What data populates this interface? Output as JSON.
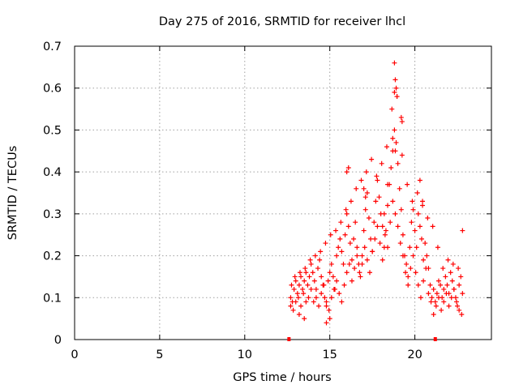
{
  "chart_data": {
    "type": "scatter",
    "title": "Day 275 of 2016, SRMTID for receiver lhcl",
    "xlabel": "GPS time / hours",
    "ylabel": "SRMTID / TECUs",
    "xlim": [
      0,
      24.5
    ],
    "ylim": [
      0,
      0.7
    ],
    "xticks": [
      0,
      5,
      10,
      15,
      20
    ],
    "yticks": [
      0,
      0.1,
      0.2,
      0.3,
      0.4,
      0.5,
      0.6,
      0.7
    ],
    "x_tick_labels": [
      "0",
      "5",
      "10",
      "15",
      "20"
    ],
    "y_tick_labels": [
      "0",
      "0.1",
      "0.2",
      "0.3",
      "0.4",
      "0.5",
      "0.6",
      "0.7"
    ],
    "grid": true,
    "marker": "+",
    "color": "#ff0000",
    "series": [
      {
        "name": "SRMTID",
        "x": [
          12.7,
          12.8,
          12.9,
          13.0,
          13.1,
          13.2,
          13.3,
          13.4,
          13.5,
          13.6,
          13.7,
          13.8,
          13.9,
          14.0,
          14.1,
          14.2,
          14.3,
          14.4,
          14.5,
          14.6,
          14.7,
          14.8,
          14.9,
          15.0,
          15.1,
          15.2,
          15.3,
          15.4,
          15.5,
          15.6,
          15.7,
          15.8,
          15.9,
          16.0,
          16.1,
          16.2,
          16.3,
          16.4,
          16.5,
          16.6,
          16.7,
          16.8,
          16.9,
          17.0,
          17.1,
          17.2,
          17.3,
          17.4,
          17.5,
          17.6,
          17.7,
          17.8,
          17.9,
          18.0,
          18.1,
          18.2,
          18.3,
          18.4,
          18.5,
          18.6,
          18.7,
          18.8,
          18.9,
          19.0,
          19.1,
          19.2,
          19.3,
          19.4,
          19.5,
          19.6,
          19.7,
          19.8,
          19.9,
          20.0,
          20.1,
          20.2,
          20.3,
          20.4,
          20.5,
          20.6,
          20.7,
          20.8,
          20.9,
          21.0,
          21.1,
          21.2,
          21.3,
          21.4,
          21.5,
          21.6,
          21.7,
          21.8,
          21.9,
          22.0,
          22.1,
          22.2,
          22.3,
          22.4,
          22.5,
          22.6,
          22.7,
          22.8,
          12.7,
          12.85,
          13.0,
          13.15,
          13.3,
          13.45,
          13.6,
          13.75,
          13.9,
          14.05,
          14.2,
          14.35,
          14.5,
          14.65,
          14.8,
          14.95,
          15.1,
          15.25,
          15.4,
          15.55,
          15.7,
          15.85,
          16.0,
          16.15,
          16.3,
          16.45,
          16.6,
          16.75,
          16.9,
          17.05,
          17.2,
          17.35,
          17.5,
          17.65,
          17.8,
          17.95,
          18.1,
          18.25,
          18.4,
          18.55,
          18.7,
          18.85,
          19.0,
          19.15,
          19.3,
          19.45,
          19.6,
          19.75,
          19.9,
          20.05,
          20.2,
          20.35,
          20.5,
          20.65,
          20.8,
          20.95,
          21.1,
          21.25,
          21.4,
          21.55,
          21.7,
          21.85,
          22.0,
          22.15,
          22.3,
          22.45,
          22.6,
          22.75,
          12.75,
          12.95,
          13.25,
          13.55,
          13.85,
          14.15,
          14.45,
          14.75,
          15.05,
          15.35,
          15.65,
          15.95,
          16.25,
          16.55,
          16.85,
          17.15,
          17.45,
          17.75,
          18.05,
          18.35,
          18.65,
          18.95,
          19.25,
          19.55,
          19.85,
          20.15,
          20.45,
          20.75,
          21.05,
          21.35,
          21.65,
          21.95,
          22.25,
          22.55,
          22.8,
          18.8,
          18.85,
          18.9,
          18.8,
          18.95,
          19.2,
          19.25,
          18.7,
          18.85,
          16.1,
          16.0,
          17.0,
          17.1,
          18.4,
          18.2,
          20.3,
          20.45,
          15.0,
          14.8,
          13.2,
          13.5
        ],
        "y": [
          0.1,
          0.09,
          0.12,
          0.14,
          0.11,
          0.13,
          0.15,
          0.12,
          0.14,
          0.16,
          0.13,
          0.15,
          0.18,
          0.16,
          0.14,
          0.12,
          0.17,
          0.19,
          0.15,
          0.13,
          0.1,
          0.08,
          0.14,
          0.16,
          0.18,
          0.15,
          0.12,
          0.2,
          0.22,
          0.24,
          0.21,
          0.18,
          0.25,
          0.3,
          0.27,
          0.23,
          0.19,
          0.24,
          0.28,
          0.22,
          0.18,
          0.15,
          0.2,
          0.26,
          0.31,
          0.35,
          0.29,
          0.24,
          0.21,
          0.28,
          0.33,
          0.38,
          0.34,
          0.3,
          0.27,
          0.22,
          0.26,
          0.32,
          0.37,
          0.41,
          0.45,
          0.5,
          0.47,
          0.42,
          0.36,
          0.31,
          0.25,
          0.2,
          0.18,
          0.15,
          0.22,
          0.28,
          0.31,
          0.26,
          0.22,
          0.3,
          0.27,
          0.24,
          0.19,
          0.23,
          0.2,
          0.17,
          0.13,
          0.1,
          0.12,
          0.09,
          0.11,
          0.14,
          0.13,
          0.1,
          0.12,
          0.15,
          0.13,
          0.11,
          0.16,
          0.14,
          0.12,
          0.1,
          0.08,
          0.13,
          0.15,
          0.11,
          0.08,
          0.07,
          0.09,
          0.1,
          0.08,
          0.11,
          0.09,
          0.1,
          0.12,
          0.09,
          0.1,
          0.08,
          0.11,
          0.13,
          0.09,
          0.07,
          0.1,
          0.12,
          0.14,
          0.11,
          0.09,
          0.13,
          0.16,
          0.18,
          0.14,
          0.17,
          0.2,
          0.16,
          0.18,
          0.22,
          0.19,
          0.16,
          0.21,
          0.24,
          0.27,
          0.23,
          0.19,
          0.25,
          0.22,
          0.28,
          0.33,
          0.3,
          0.27,
          0.23,
          0.2,
          0.16,
          0.13,
          0.17,
          0.2,
          0.16,
          0.13,
          0.1,
          0.14,
          0.17,
          0.11,
          0.09,
          0.06,
          0.08,
          0.1,
          0.07,
          0.09,
          0.11,
          0.08,
          0.1,
          0.12,
          0.09,
          0.07,
          0.06,
          0.13,
          0.15,
          0.16,
          0.17,
          0.19,
          0.2,
          0.21,
          0.23,
          0.25,
          0.26,
          0.28,
          0.31,
          0.33,
          0.36,
          0.38,
          0.4,
          0.43,
          0.39,
          0.42,
          0.46,
          0.55,
          0.58,
          0.44,
          0.37,
          0.33,
          0.35,
          0.32,
          0.29,
          0.27,
          0.22,
          0.17,
          0.19,
          0.18,
          0.17,
          0.26,
          0.66,
          0.62,
          0.6,
          0.59,
          0.58,
          0.53,
          0.52,
          0.48,
          0.45,
          0.41,
          0.4,
          0.36,
          0.34,
          0.37,
          0.3,
          0.38,
          0.33,
          0.05,
          0.04,
          0.06,
          0.05
        ]
      }
    ],
    "endpoint_markers": [
      {
        "x": 12.6,
        "y": 0
      },
      {
        "x": 21.2,
        "y": 0
      }
    ]
  }
}
